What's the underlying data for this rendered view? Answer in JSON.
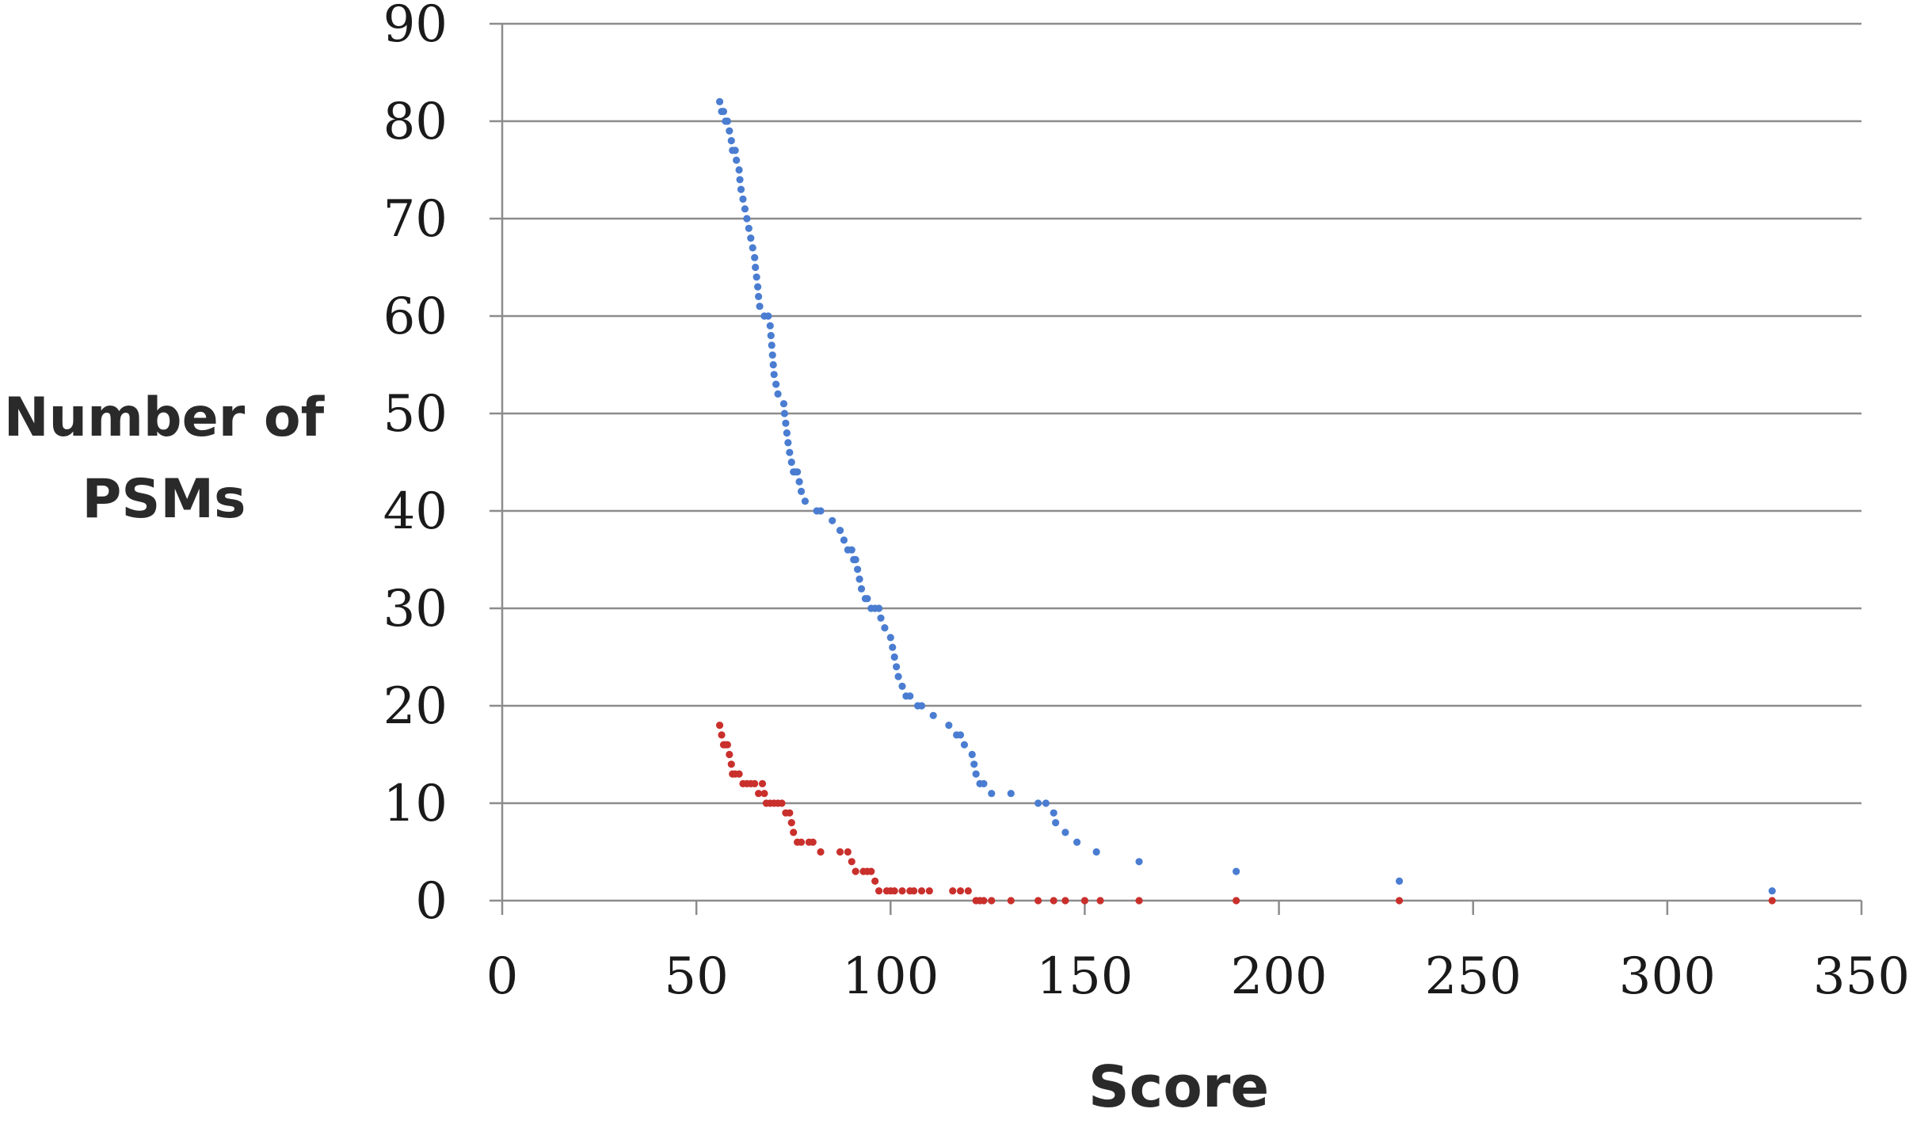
{
  "chart_data": {
    "type": "scatter",
    "title": "",
    "xlabel": "Score",
    "ylabel_lines": [
      "Number of",
      "PSMs"
    ],
    "xlim": [
      0,
      350
    ],
    "ylim": [
      0,
      90
    ],
    "x_ticks": [
      0,
      50,
      100,
      150,
      200,
      250,
      300,
      350
    ],
    "y_ticks": [
      0,
      10,
      20,
      30,
      40,
      50,
      60,
      70,
      80,
      90
    ],
    "x_tick_labels": [
      "0",
      "50",
      "100",
      "150",
      "200",
      "250",
      "300",
      "350"
    ],
    "y_tick_labels": [
      "0",
      "10",
      "20",
      "30",
      "40",
      "50",
      "60",
      "70",
      "80",
      "90"
    ],
    "grid": "horizontal",
    "legend": "none",
    "series": [
      {
        "color": "#4a7dd1",
        "points": [
          [
            56,
            82
          ],
          [
            56.5,
            81
          ],
          [
            57,
            81
          ],
          [
            57.5,
            80
          ],
          [
            58,
            80
          ],
          [
            58.5,
            79
          ],
          [
            59,
            78
          ],
          [
            59.3,
            77
          ],
          [
            60,
            77
          ],
          [
            60.3,
            76
          ],
          [
            61,
            75
          ],
          [
            61.2,
            74
          ],
          [
            61.5,
            73
          ],
          [
            62,
            72
          ],
          [
            62.5,
            71
          ],
          [
            63,
            70
          ],
          [
            63.5,
            69
          ],
          [
            64,
            68
          ],
          [
            64.5,
            67
          ],
          [
            65,
            66
          ],
          [
            65.2,
            65
          ],
          [
            65.5,
            64
          ],
          [
            65.8,
            63
          ],
          [
            66,
            62
          ],
          [
            66.3,
            61
          ],
          [
            67.5,
            60
          ],
          [
            68.5,
            60
          ],
          [
            69,
            59
          ],
          [
            69.2,
            58
          ],
          [
            69.4,
            57
          ],
          [
            69.6,
            56
          ],
          [
            69.8,
            55
          ],
          [
            70,
            54
          ],
          [
            70.5,
            53
          ],
          [
            71,
            52
          ],
          [
            72.5,
            51
          ],
          [
            72.7,
            50
          ],
          [
            73,
            49
          ],
          [
            73.3,
            48
          ],
          [
            73.6,
            47
          ],
          [
            74,
            46
          ],
          [
            74.5,
            45
          ],
          [
            75,
            44
          ],
          [
            75.5,
            44
          ],
          [
            76,
            44
          ],
          [
            76.5,
            43
          ],
          [
            77,
            42
          ],
          [
            78,
            41
          ],
          [
            81,
            40
          ],
          [
            82,
            40
          ],
          [
            85,
            39
          ],
          [
            87,
            38
          ],
          [
            88,
            37
          ],
          [
            89,
            36
          ],
          [
            90,
            36
          ],
          [
            90.5,
            35
          ],
          [
            91,
            35
          ],
          [
            91.5,
            34
          ],
          [
            92,
            33
          ],
          [
            92.5,
            32
          ],
          [
            93.5,
            31
          ],
          [
            94,
            31
          ],
          [
            95,
            30
          ],
          [
            96,
            30
          ],
          [
            97,
            30
          ],
          [
            97.5,
            29
          ],
          [
            98.5,
            28
          ],
          [
            100,
            27
          ],
          [
            100.5,
            26
          ],
          [
            101,
            25
          ],
          [
            101.5,
            24
          ],
          [
            102,
            23
          ],
          [
            103,
            22
          ],
          [
            104,
            21
          ],
          [
            105,
            21
          ],
          [
            107,
            20
          ],
          [
            108,
            20
          ],
          [
            111,
            19
          ],
          [
            115,
            18
          ],
          [
            117,
            17
          ],
          [
            118,
            17
          ],
          [
            119,
            16
          ],
          [
            121,
            15
          ],
          [
            121.5,
            14
          ],
          [
            122,
            13
          ],
          [
            123,
            12
          ],
          [
            124,
            12
          ],
          [
            126,
            11
          ],
          [
            131,
            11
          ],
          [
            138,
            10
          ],
          [
            140,
            10
          ],
          [
            142,
            9
          ],
          [
            142.5,
            8
          ],
          [
            145,
            7
          ],
          [
            148,
            6
          ],
          [
            153,
            5
          ],
          [
            164,
            4
          ],
          [
            189,
            3
          ],
          [
            231,
            2
          ],
          [
            327,
            1
          ]
        ]
      },
      {
        "color": "#c9302c",
        "points": [
          [
            56,
            18
          ],
          [
            56.5,
            17
          ],
          [
            57,
            16
          ],
          [
            57.5,
            16
          ],
          [
            58,
            16
          ],
          [
            58.5,
            15
          ],
          [
            59,
            14
          ],
          [
            59.3,
            13
          ],
          [
            60,
            13
          ],
          [
            61,
            13
          ],
          [
            62,
            12
          ],
          [
            63,
            12
          ],
          [
            64,
            12
          ],
          [
            65,
            12
          ],
          [
            66,
            11
          ],
          [
            67,
            12
          ],
          [
            67.5,
            11
          ],
          [
            68,
            10
          ],
          [
            69,
            10
          ],
          [
            70,
            10
          ],
          [
            71,
            10
          ],
          [
            72,
            10
          ],
          [
            73,
            9
          ],
          [
            74,
            9
          ],
          [
            74.5,
            8
          ],
          [
            75,
            7
          ],
          [
            76,
            6
          ],
          [
            77,
            6
          ],
          [
            79,
            6
          ],
          [
            80,
            6
          ],
          [
            82,
            5
          ],
          [
            87,
            5
          ],
          [
            89,
            5
          ],
          [
            90,
            4
          ],
          [
            91,
            3
          ],
          [
            93,
            3
          ],
          [
            94,
            3
          ],
          [
            95,
            3
          ],
          [
            96,
            2
          ],
          [
            97,
            1
          ],
          [
            99,
            1
          ],
          [
            100,
            1
          ],
          [
            101,
            1
          ],
          [
            103,
            1
          ],
          [
            105,
            1
          ],
          [
            106,
            1
          ],
          [
            108,
            1
          ],
          [
            110,
            1
          ],
          [
            116,
            1
          ],
          [
            118,
            1
          ],
          [
            120,
            1
          ],
          [
            122,
            0
          ],
          [
            123,
            0
          ],
          [
            124,
            0
          ],
          [
            126,
            0
          ],
          [
            131,
            0
          ],
          [
            138,
            0
          ],
          [
            142,
            0
          ],
          [
            145,
            0
          ],
          [
            150,
            0
          ],
          [
            154,
            0
          ],
          [
            164,
            0
          ],
          [
            189,
            0
          ],
          [
            231,
            0
          ],
          [
            327,
            0
          ]
        ]
      }
    ]
  }
}
